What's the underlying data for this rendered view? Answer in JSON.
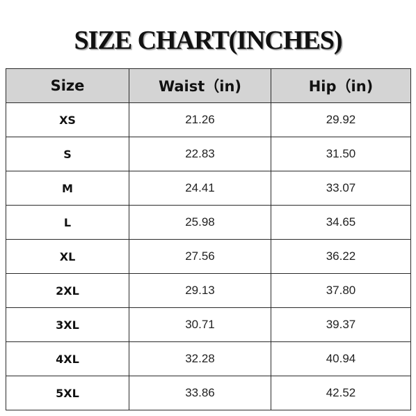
{
  "title": "SIZE CHART(INCHES)",
  "table": {
    "headers": [
      "Size",
      "Waist（in)",
      "Hip（in)"
    ],
    "rows": [
      {
        "size": "XS",
        "waist": "21.26",
        "hip": "29.92"
      },
      {
        "size": "S",
        "waist": "22.83",
        "hip": "31.50"
      },
      {
        "size": "M",
        "waist": "24.41",
        "hip": "33.07"
      },
      {
        "size": "L",
        "waist": "25.98",
        "hip": "34.65"
      },
      {
        "size": "XL",
        "waist": "27.56",
        "hip": "36.22"
      },
      {
        "size": "2XL",
        "waist": "29.13",
        "hip": "37.80"
      },
      {
        "size": "3XL",
        "waist": "30.71",
        "hip": "39.37"
      },
      {
        "size": "4XL",
        "waist": "32.28",
        "hip": "40.94"
      },
      {
        "size": "5XL",
        "waist": "33.86",
        "hip": "42.52"
      }
    ]
  },
  "colors": {
    "header_background": "#d4d4d4",
    "border": "#2a2a2a",
    "text": "#111111"
  }
}
